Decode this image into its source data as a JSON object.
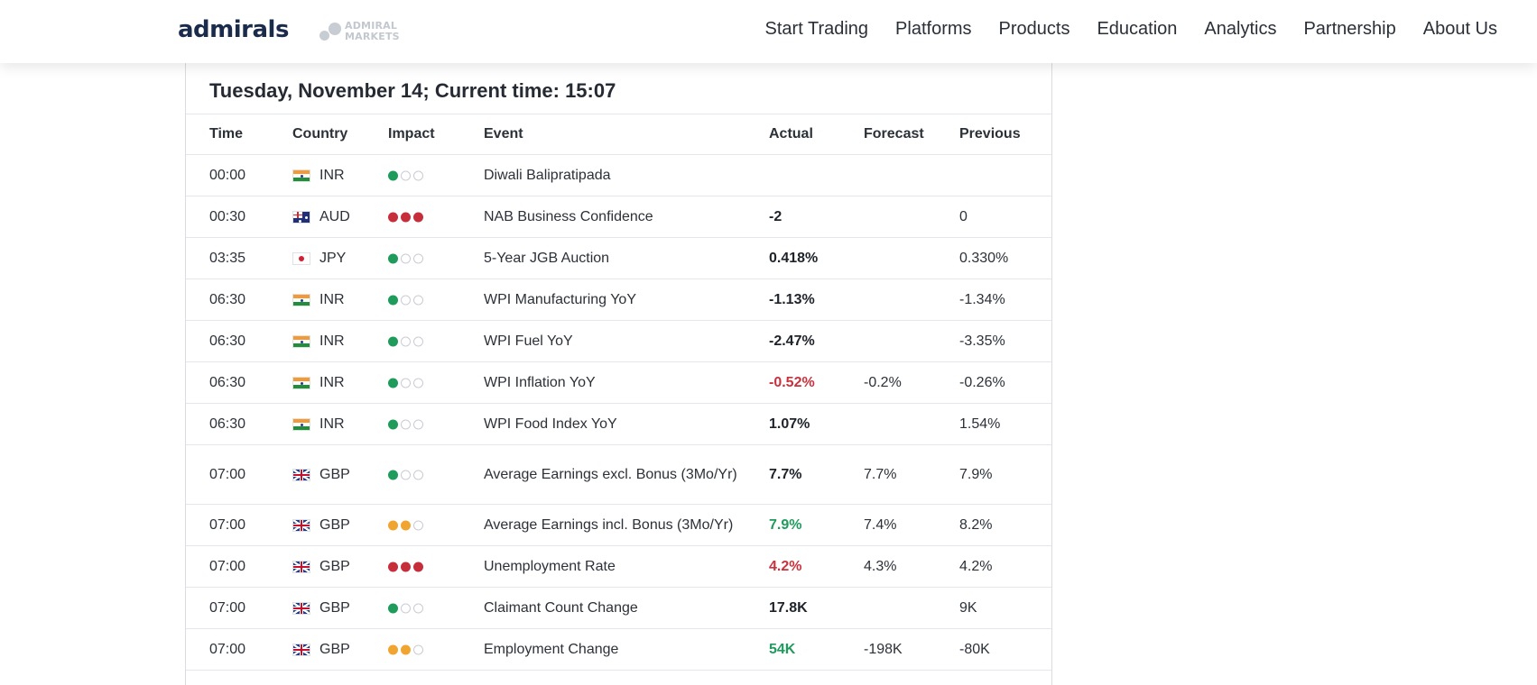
{
  "header": {
    "logo": "admirals",
    "sublogo_line1": "ADMIRAL",
    "sublogo_line2": "MARKETS",
    "nav": [
      "Start Trading",
      "Platforms",
      "Products",
      "Education",
      "Analytics",
      "Partnership",
      "About Us"
    ]
  },
  "calendar": {
    "date_line": "Tuesday, November 14; Current time: 15:07",
    "columns": {
      "time": "Time",
      "country": "Country",
      "impact": "Impact",
      "event": "Event",
      "actual": "Actual",
      "forecast": "Forecast",
      "previous": "Previous"
    },
    "colors": {
      "impact_low": "#1f9b5c",
      "impact_medium": "#f0a531",
      "impact_high": "#c72e3b",
      "value_negative_surprise": "#c8323e",
      "value_positive_surprise": "#1f9b5c"
    },
    "rows": [
      {
        "time": "00:00",
        "flag": "flag-inr",
        "country": "INR",
        "impact": "low",
        "event": "Diwali Balipratipada",
        "actual": "",
        "actual_color": "dark",
        "forecast": "",
        "previous": ""
      },
      {
        "time": "00:30",
        "flag": "flag-aud",
        "country": "AUD",
        "impact": "high",
        "event": "NAB Business Confidence",
        "actual": "-2",
        "actual_color": "dark",
        "forecast": "",
        "previous": "0"
      },
      {
        "time": "03:35",
        "flag": "flag-jpy",
        "country": "JPY",
        "impact": "low",
        "event": "5-Year JGB Auction",
        "actual": "0.418%",
        "actual_color": "dark",
        "forecast": "",
        "previous": "0.330%"
      },
      {
        "time": "06:30",
        "flag": "flag-inr",
        "country": "INR",
        "impact": "low",
        "event": "WPI Manufacturing YoY",
        "actual": "-1.13%",
        "actual_color": "dark",
        "forecast": "",
        "previous": "-1.34%"
      },
      {
        "time": "06:30",
        "flag": "flag-inr",
        "country": "INR",
        "impact": "low",
        "event": "WPI Fuel YoY",
        "actual": "-2.47%",
        "actual_color": "dark",
        "forecast": "",
        "previous": "-3.35%"
      },
      {
        "time": "06:30",
        "flag": "flag-inr",
        "country": "INR",
        "impact": "low",
        "event": "WPI Inflation YoY",
        "actual": "-0.52%",
        "actual_color": "red",
        "forecast": "-0.2%",
        "previous": "-0.26%"
      },
      {
        "time": "06:30",
        "flag": "flag-inr",
        "country": "INR",
        "impact": "low",
        "event": "WPI Food Index YoY",
        "actual": "1.07%",
        "actual_color": "dark",
        "forecast": "",
        "previous": "1.54%"
      },
      {
        "time": "07:00",
        "flag": "flag-gbp",
        "country": "GBP",
        "impact": "low",
        "event": "Average Earnings excl. Bonus (3Mo/Yr)",
        "actual": "7.7%",
        "actual_color": "dark",
        "forecast": "7.7%",
        "previous": "7.9%",
        "tall": true
      },
      {
        "time": "07:00",
        "flag": "flag-gbp",
        "country": "GBP",
        "impact": "medium",
        "event": "Average Earnings incl. Bonus (3Mo/Yr)",
        "actual": "7.9%",
        "actual_color": "green",
        "forecast": "7.4%",
        "previous": "8.2%"
      },
      {
        "time": "07:00",
        "flag": "flag-gbp",
        "country": "GBP",
        "impact": "high",
        "event": "Unemployment Rate",
        "actual": "4.2%",
        "actual_color": "red",
        "forecast": "4.3%",
        "previous": "4.2%"
      },
      {
        "time": "07:00",
        "flag": "flag-gbp",
        "country": "GBP",
        "impact": "low",
        "event": "Claimant Count Change",
        "actual": "17.8K",
        "actual_color": "dark",
        "forecast": "",
        "previous": "9K"
      },
      {
        "time": "07:00",
        "flag": "flag-gbp",
        "country": "GBP",
        "impact": "medium",
        "event": "Employment Change",
        "actual": "54K",
        "actual_color": "green",
        "forecast": "-198K",
        "previous": "-80K"
      }
    ]
  }
}
